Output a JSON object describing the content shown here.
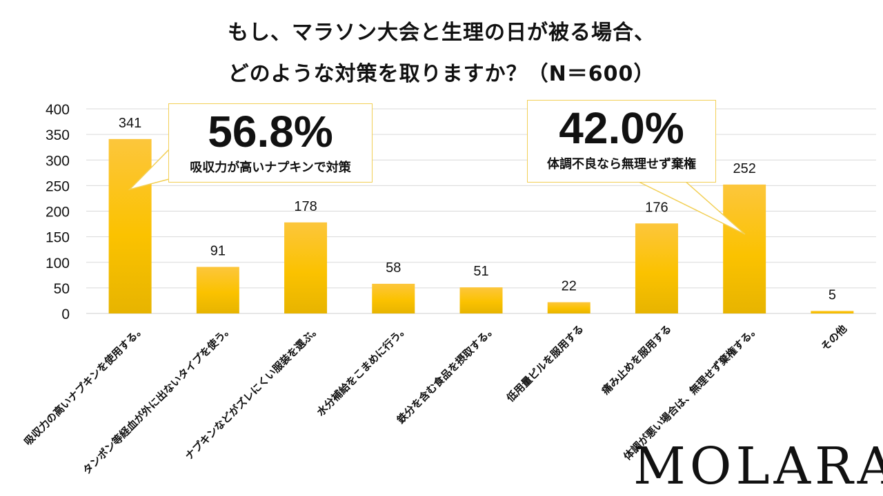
{
  "title": {
    "line1": "もし、マラソン大会と生理の日が被る場合、",
    "line2": "どのような対策を取りますか？（N＝600）"
  },
  "callouts": [
    {
      "value": "56.8%",
      "label": "吸収力が高いナプキンで対策"
    },
    {
      "value": "42.0%",
      "label": "体調不良なら無理せず棄権"
    }
  ],
  "logo": "MOLARA",
  "colors": {
    "bar_top": "#fcc63c",
    "bar_mid": "#fbc200",
    "bar_bottom": "#e7b400",
    "callout_border": "#f2cf55",
    "grid": "#d9d9d9"
  },
  "chart_data": {
    "type": "bar",
    "categories": [
      "吸収力の高いナプキンを使用する。",
      "タンポン等経血が外に出ないタイプを使う。",
      "ナプキンなどがズレにくい服装を選ぶ。",
      "水分補給をこまめに行う。",
      "鉄分を含む食品を摂取する。",
      "低用量ピルを服用する",
      "痛み止めを服用する",
      "体調が悪い場合は、無理せず棄権する。",
      "その他"
    ],
    "values": [
      341,
      91,
      178,
      58,
      51,
      22,
      176,
      252,
      5
    ],
    "ylim": [
      0,
      400
    ],
    "yticks": [
      0,
      50,
      100,
      150,
      200,
      250,
      300,
      350,
      400
    ],
    "grid": true
  }
}
